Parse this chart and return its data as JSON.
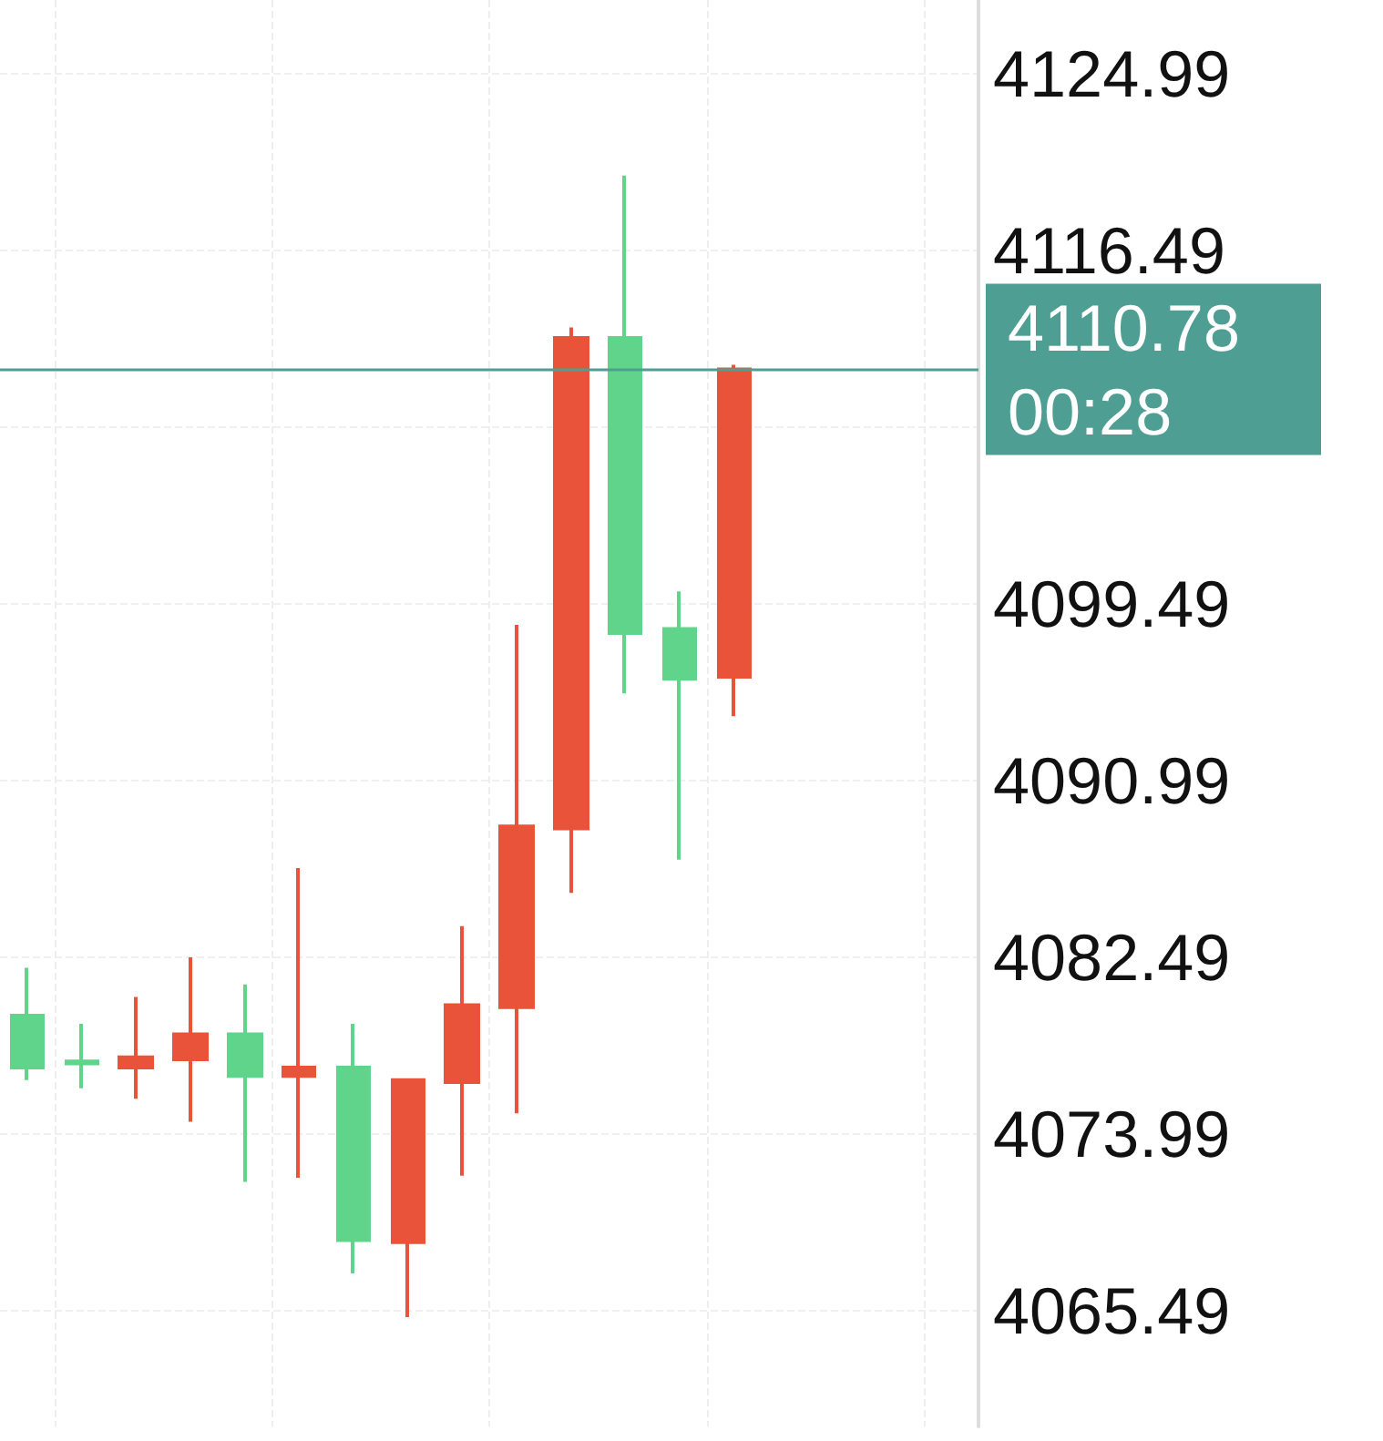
{
  "chart_data": {
    "type": "candlestick",
    "categories": [
      null,
      null,
      null,
      null,
      null,
      null,
      null,
      null,
      null,
      null,
      null,
      null,
      null,
      null,
      null,
      null,
      null,
      null
    ],
    "ohlc": [
      [
        4079.7,
        4082.0,
        4076.6,
        4077.2
      ],
      [
        4077.5,
        4079.3,
        4076.2,
        4077.4
      ],
      [
        4077.2,
        4080.6,
        4075.7,
        4077.7
      ],
      [
        4077.6,
        4082.5,
        4074.6,
        4078.8
      ],
      [
        4078.8,
        4081.2,
        4071.7,
        4076.8
      ],
      [
        4076.8,
        4086.8,
        4071.9,
        4077.2
      ],
      [
        4077.2,
        4079.3,
        4067.3,
        4068.9
      ],
      [
        4068.8,
        4076.6,
        4065.2,
        4076.6
      ],
      [
        4076.5,
        4084.0,
        4072.0,
        4080.2
      ],
      [
        4080.1,
        4098.5,
        4075.0,
        4088.8
      ],
      [
        4088.7,
        4112.8,
        4085.6,
        4112.3
      ],
      [
        4112.3,
        4120.1,
        4095.2,
        4098.1
      ],
      [
        4098.3,
        4100.1,
        4087.2,
        4095.9
      ],
      [
        4096.0,
        4111.0,
        4094.1,
        4110.78
      ],
      null,
      null,
      null,
      null
    ],
    "colors": [
      "#5fd48a",
      "#5fd48a",
      "#e9533a",
      "#e9533a",
      "#5fd48a",
      "#e9533a",
      "#5fd48a",
      "#e9533a",
      "#e9533a",
      "#e9533a",
      "#e9533a",
      "#5fd48a",
      "#5fd48a",
      "#e9533a",
      null,
      null,
      null,
      null
    ],
    "ylim": [
      4059.94,
      4128.55
    ],
    "yticks": [
      4065.49,
      4073.99,
      4082.49,
      4090.99,
      4099.49,
      {
        "value": 4107.99,
        "label": null
      },
      4116.49,
      4124.99
    ],
    "ref_lines": [
      {
        "axis": "y",
        "value": 4110.78,
        "label": "4110.78\n00:28",
        "color": "#4e9e93"
      }
    ],
    "grid": true
  }
}
